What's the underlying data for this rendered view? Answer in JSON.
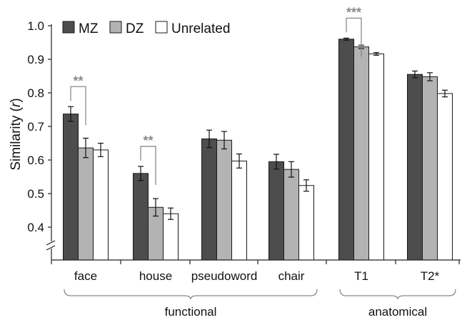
{
  "chart_data": {
    "type": "bar",
    "ylabel_main": "Similarity (",
    "ylabel_var": "r",
    "ylabel_close": ")",
    "ylim": [
      0.33,
      1.0
    ],
    "y_ticks": [
      {
        "value": 1.0,
        "label": "1.0"
      },
      {
        "value": 0.9,
        "label": "0.9"
      },
      {
        "value": 0.8,
        "label": "0.8"
      },
      {
        "value": 0.7,
        "label": "0.7"
      },
      {
        "value": 0.6,
        "label": "0.6"
      },
      {
        "value": 0.5,
        "label": "0.5"
      },
      {
        "value": 0.4,
        "label": "0.4"
      }
    ],
    "axis_break": true,
    "grid": false,
    "legend_position": "top-left",
    "categories": [
      "face",
      "house",
      "pseudoword",
      "chair",
      "T1",
      "T2*"
    ],
    "series": [
      {
        "name": "MZ",
        "color": "#4d4d4d",
        "values": [
          0.737,
          0.56,
          0.663,
          0.595,
          0.96,
          0.855
        ],
        "errors": [
          0.022,
          0.021,
          0.026,
          0.022,
          0.003,
          0.01
        ]
      },
      {
        "name": "DZ",
        "color": "#b3b3b3",
        "values": [
          0.636,
          0.459,
          0.659,
          0.572,
          0.937,
          0.848
        ],
        "errors": [
          0.029,
          0.026,
          0.026,
          0.023,
          0.005,
          0.012
        ]
      },
      {
        "name": "Unrelated",
        "color": "#ffffff",
        "values": [
          0.63,
          0.44,
          0.597,
          0.524,
          0.916,
          0.798
        ],
        "errors": [
          0.02,
          0.017,
          0.021,
          0.017,
          0.004,
          0.01
        ]
      }
    ],
    "significance": [
      {
        "category": "face",
        "label": "**"
      },
      {
        "category": "house",
        "label": "**"
      },
      {
        "category": "T1",
        "label": "***"
      }
    ],
    "groups": [
      {
        "label": "functional",
        "categories": [
          "face",
          "house",
          "pseudoword",
          "chair"
        ]
      },
      {
        "label": "anatomical",
        "categories": [
          "T1",
          "T2*"
        ]
      }
    ]
  }
}
